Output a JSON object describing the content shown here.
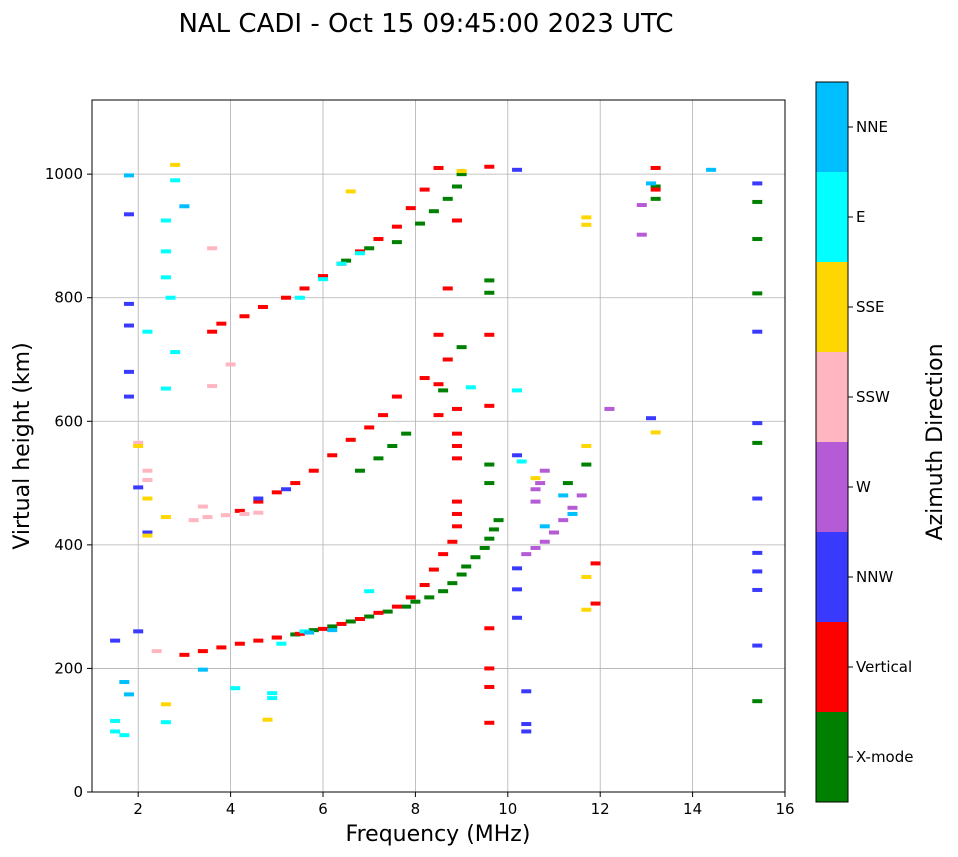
{
  "chart_data": {
    "type": "scatter",
    "title": "NAL CADI - Oct 15 09:45:00 2023 UTC",
    "xlabel": "Frequency (MHz)",
    "ylabel": "Virtual height (km)",
    "xlim": [
      1,
      16
    ],
    "ylim": [
      0,
      1120
    ],
    "x_ticks": [
      2,
      4,
      6,
      8,
      10,
      12,
      14,
      16
    ],
    "y_ticks": [
      0,
      200,
      400,
      600,
      800,
      1000
    ],
    "grid": true,
    "colorbar": {
      "title": "Azimuth Direction",
      "categories": [
        {
          "label": "X-mode",
          "color": "#008000"
        },
        {
          "label": "Vertical",
          "color": "#ff0000"
        },
        {
          "label": "NNW",
          "color": "#3a3aff"
        },
        {
          "label": "W",
          "color": "#b65bd6"
        },
        {
          "label": "SSW",
          "color": "#ffb6c1"
        },
        {
          "label": "SSE",
          "color": "#ffd700"
        },
        {
          "label": "E",
          "color": "#00ffff"
        },
        {
          "label": "NNE",
          "color": "#00bfff"
        }
      ]
    },
    "series": [
      {
        "name": "X-mode",
        "points": [
          [
            5.0,
            250
          ],
          [
            5.4,
            255
          ],
          [
            5.8,
            262
          ],
          [
            6.2,
            268
          ],
          [
            6.6,
            276
          ],
          [
            7.0,
            284
          ],
          [
            7.4,
            292
          ],
          [
            7.8,
            300
          ],
          [
            8.0,
            308
          ],
          [
            8.3,
            315
          ],
          [
            8.6,
            325
          ],
          [
            8.8,
            338
          ],
          [
            9.0,
            352
          ],
          [
            9.1,
            365
          ],
          [
            9.3,
            380
          ],
          [
            9.5,
            395
          ],
          [
            9.6,
            410
          ],
          [
            9.7,
            425
          ],
          [
            9.8,
            440
          ],
          [
            9.6,
            500
          ],
          [
            9.6,
            530
          ],
          [
            9.6,
            808
          ],
          [
            9.6,
            828
          ],
          [
            8.6,
            650
          ],
          [
            9.0,
            720
          ],
          [
            6.8,
            520
          ],
          [
            7.2,
            540
          ],
          [
            7.5,
            560
          ],
          [
            7.8,
            580
          ],
          [
            6.5,
            860
          ],
          [
            7.0,
            880
          ],
          [
            7.6,
            890
          ],
          [
            8.1,
            920
          ],
          [
            8.4,
            940
          ],
          [
            8.7,
            960
          ],
          [
            8.9,
            980
          ],
          [
            13.2,
            980
          ],
          [
            13.2,
            960
          ],
          [
            15.4,
            955
          ],
          [
            15.4,
            895
          ],
          [
            15.4,
            807
          ],
          [
            15.4,
            565
          ],
          [
            15.4,
            147
          ],
          [
            11.7,
            530
          ],
          [
            11.3,
            500
          ],
          [
            9.0,
            1000
          ]
        ]
      },
      {
        "name": "Vertical",
        "points": [
          [
            3.0,
            222
          ],
          [
            3.4,
            228
          ],
          [
            3.8,
            234
          ],
          [
            4.2,
            240
          ],
          [
            4.6,
            245
          ],
          [
            5.0,
            250
          ],
          [
            5.5,
            256
          ],
          [
            6.0,
            264
          ],
          [
            6.4,
            272
          ],
          [
            6.8,
            280
          ],
          [
            7.2,
            290
          ],
          [
            7.6,
            300
          ],
          [
            7.9,
            315
          ],
          [
            8.2,
            335
          ],
          [
            8.4,
            360
          ],
          [
            8.6,
            385
          ],
          [
            8.8,
            405
          ],
          [
            8.9,
            430
          ],
          [
            8.9,
            450
          ],
          [
            8.9,
            470
          ],
          [
            8.9,
            540
          ],
          [
            8.9,
            560
          ],
          [
            8.9,
            580
          ],
          [
            8.9,
            620
          ],
          [
            8.5,
            610
          ],
          [
            8.5,
            660
          ],
          [
            8.5,
            740
          ],
          [
            8.7,
            700
          ],
          [
            8.2,
            670
          ],
          [
            7.6,
            640
          ],
          [
            7.3,
            610
          ],
          [
            7.0,
            590
          ],
          [
            6.6,
            570
          ],
          [
            6.2,
            545
          ],
          [
            5.8,
            520
          ],
          [
            5.4,
            500
          ],
          [
            5.0,
            485
          ],
          [
            4.6,
            470
          ],
          [
            4.2,
            455
          ],
          [
            3.6,
            745
          ],
          [
            3.8,
            758
          ],
          [
            4.3,
            770
          ],
          [
            4.7,
            785
          ],
          [
            5.2,
            800
          ],
          [
            5.6,
            815
          ],
          [
            6.0,
            835
          ],
          [
            6.4,
            855
          ],
          [
            6.8,
            875
          ],
          [
            7.2,
            895
          ],
          [
            7.6,
            915
          ],
          [
            7.9,
            945
          ],
          [
            8.2,
            975
          ],
          [
            8.5,
            1010
          ],
          [
            8.9,
            925
          ],
          [
            8.7,
            815
          ],
          [
            9.6,
            1012
          ],
          [
            9.6,
            740
          ],
          [
            9.6,
            625
          ],
          [
            9.6,
            265
          ],
          [
            9.6,
            200
          ],
          [
            9.6,
            170
          ],
          [
            9.6,
            112
          ],
          [
            13.2,
            1010
          ],
          [
            13.2,
            975
          ],
          [
            11.9,
            370
          ],
          [
            11.9,
            305
          ]
        ]
      },
      {
        "name": "NNW",
        "points": [
          [
            1.5,
            245
          ],
          [
            2.0,
            260
          ],
          [
            2.2,
            420
          ],
          [
            2.0,
            493
          ],
          [
            1.8,
            935
          ],
          [
            1.8,
            790
          ],
          [
            1.8,
            755
          ],
          [
            1.8,
            680
          ],
          [
            1.8,
            640
          ],
          [
            10.2,
            1007
          ],
          [
            10.2,
            545
          ],
          [
            10.2,
            362
          ],
          [
            10.2,
            328
          ],
          [
            10.2,
            282
          ],
          [
            10.4,
            110
          ],
          [
            10.4,
            98
          ],
          [
            10.4,
            163
          ],
          [
            15.4,
            985
          ],
          [
            15.4,
            745
          ],
          [
            15.4,
            597
          ],
          [
            15.4,
            475
          ],
          [
            15.4,
            387
          ],
          [
            15.4,
            357
          ],
          [
            15.4,
            327
          ],
          [
            15.4,
            237
          ],
          [
            13.1,
            605
          ],
          [
            4.6,
            475
          ],
          [
            5.2,
            490
          ]
        ]
      },
      {
        "name": "W",
        "points": [
          [
            10.4,
            385
          ],
          [
            10.6,
            395
          ],
          [
            10.8,
            405
          ],
          [
            11.0,
            420
          ],
          [
            11.2,
            440
          ],
          [
            11.4,
            460
          ],
          [
            11.6,
            480
          ],
          [
            10.6,
            470
          ],
          [
            10.7,
            500
          ],
          [
            10.8,
            520
          ],
          [
            10.6,
            490
          ],
          [
            12.2,
            620
          ],
          [
            12.9,
            902
          ],
          [
            12.9,
            950
          ]
        ]
      },
      {
        "name": "SSW",
        "points": [
          [
            3.2,
            440
          ],
          [
            3.5,
            445
          ],
          [
            3.9,
            448
          ],
          [
            4.3,
            450
          ],
          [
            4.6,
            452
          ],
          [
            3.4,
            462
          ],
          [
            2.2,
            520
          ],
          [
            2.2,
            505
          ],
          [
            2.4,
            228
          ],
          [
            2.0,
            565
          ],
          [
            3.6,
            657
          ],
          [
            3.6,
            880
          ],
          [
            4.0,
            692
          ]
        ]
      },
      {
        "name": "SSE",
        "points": [
          [
            2.0,
            560
          ],
          [
            2.2,
            475
          ],
          [
            2.2,
            415
          ],
          [
            2.6,
            445
          ],
          [
            2.6,
            142
          ],
          [
            2.8,
            1015
          ],
          [
            11.7,
            930
          ],
          [
            11.7,
            918
          ],
          [
            11.7,
            560
          ],
          [
            11.7,
            348
          ],
          [
            11.7,
            295
          ],
          [
            13.2,
            582
          ],
          [
            10.6,
            508
          ],
          [
            9.0,
            1005
          ],
          [
            6.6,
            972
          ],
          [
            4.8,
            117
          ]
        ]
      },
      {
        "name": "E",
        "points": [
          [
            1.5,
            115
          ],
          [
            1.5,
            98
          ],
          [
            1.7,
            92
          ],
          [
            2.6,
            113
          ],
          [
            2.8,
            990
          ],
          [
            2.6,
            925
          ],
          [
            2.6,
            875
          ],
          [
            2.6,
            833
          ],
          [
            2.7,
            800
          ],
          [
            2.2,
            745
          ],
          [
            2.8,
            712
          ],
          [
            2.6,
            653
          ],
          [
            4.1,
            168
          ],
          [
            4.9,
            160
          ],
          [
            4.9,
            152
          ],
          [
            5.5,
            800
          ],
          [
            6.0,
            830
          ],
          [
            6.4,
            855
          ],
          [
            6.8,
            872
          ],
          [
            5.1,
            240
          ],
          [
            5.6,
            260
          ],
          [
            7.0,
            325
          ],
          [
            9.2,
            655
          ],
          [
            10.2,
            650
          ],
          [
            10.3,
            535
          ]
        ]
      },
      {
        "name": "NNE",
        "points": [
          [
            1.7,
            178
          ],
          [
            1.8,
            158
          ],
          [
            1.8,
            998
          ],
          [
            3.0,
            948
          ],
          [
            3.4,
            198
          ],
          [
            13.1,
            985
          ],
          [
            14.4,
            1007
          ],
          [
            11.2,
            480
          ],
          [
            11.4,
            450
          ],
          [
            10.8,
            430
          ],
          [
            6.2,
            262
          ],
          [
            5.7,
            258
          ]
        ]
      }
    ]
  }
}
